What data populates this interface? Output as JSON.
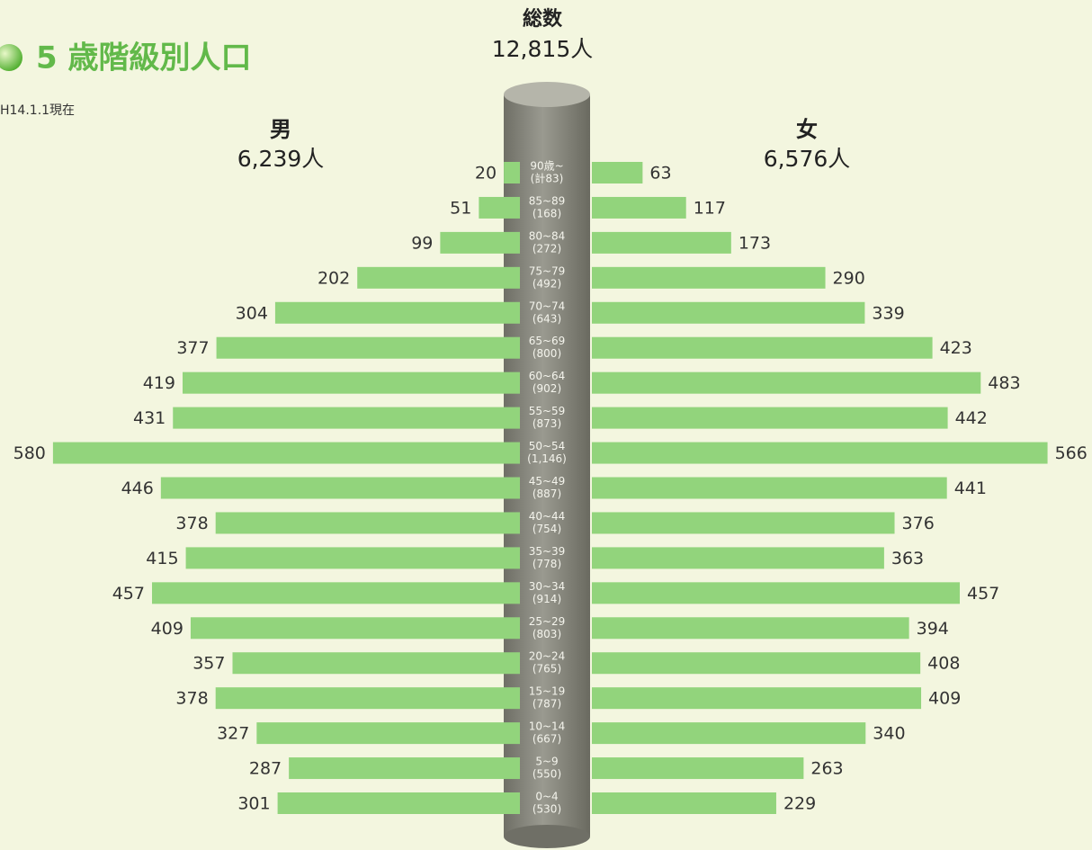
{
  "chart_data": {
    "type": "pyramid",
    "title": "5 歳階級別人口",
    "subtitle": "H14.1.1現在",
    "total_label": "総数",
    "total_value": "12,815人",
    "categories": [
      "90歳~",
      "85~89",
      "80~84",
      "75~79",
      "70~74",
      "65~69",
      "60~64",
      "55~59",
      "50~54",
      "45~49",
      "40~44",
      "35~39",
      "30~34",
      "25~29",
      "20~24",
      "15~19",
      "10~14",
      "5~9",
      "0~4"
    ],
    "category_totals": [
      "(計83)",
      "(168)",
      "(272)",
      "(492)",
      "(643)",
      "(800)",
      "(902)",
      "(873)",
      "(1,146)",
      "(887)",
      "(754)",
      "(778)",
      "(914)",
      "(803)",
      "(765)",
      "(787)",
      "(667)",
      "(550)",
      "(530)"
    ],
    "series": [
      {
        "name": "男",
        "total": "6,239人",
        "color": "#92d47c",
        "values": [
          20,
          51,
          99,
          202,
          304,
          377,
          419,
          431,
          580,
          446,
          378,
          415,
          457,
          409,
          357,
          378,
          327,
          287,
          301
        ]
      },
      {
        "name": "女",
        "total": "6,576人",
        "color": "#92d47c",
        "values": [
          63,
          117,
          173,
          290,
          339,
          423,
          483,
          442,
          566,
          441,
          376,
          363,
          457,
          394,
          408,
          409,
          340,
          263,
          229
        ]
      }
    ]
  }
}
